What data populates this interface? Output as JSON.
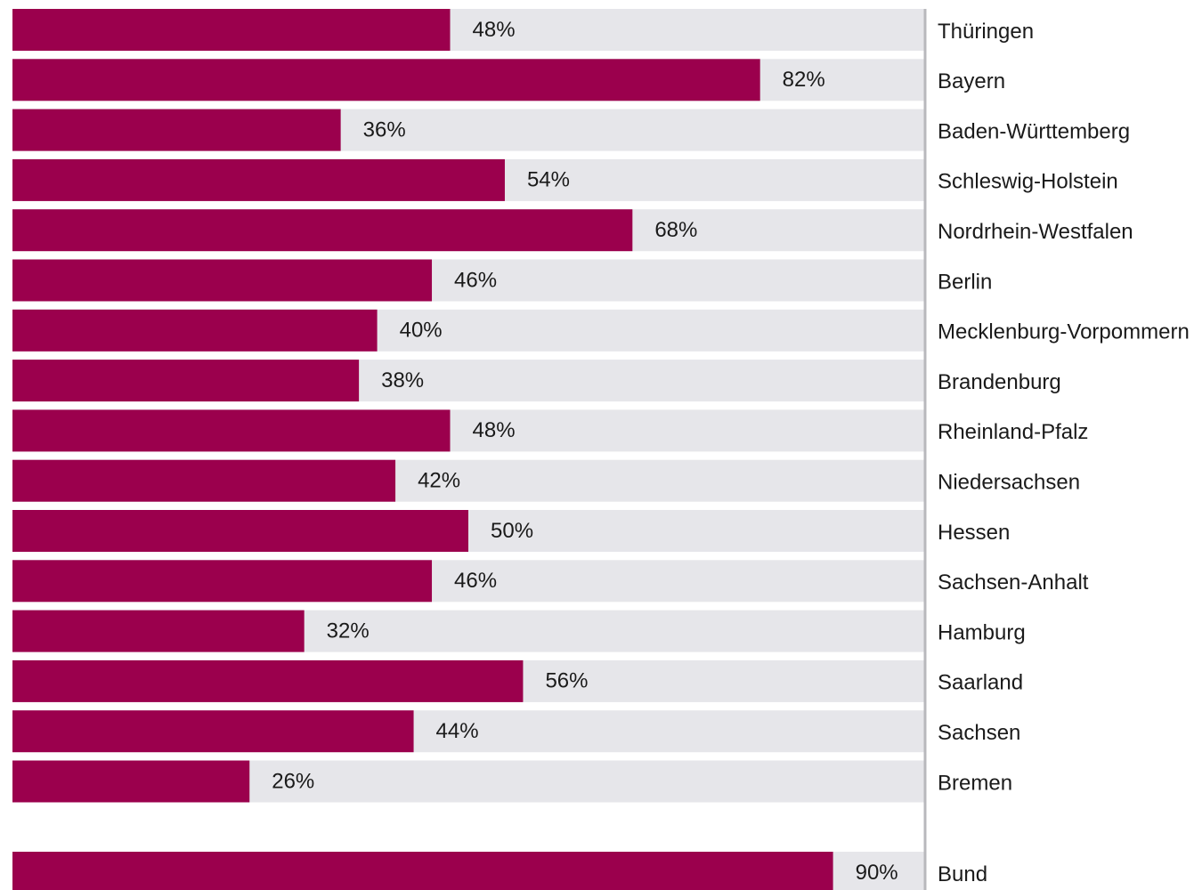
{
  "chart_data": {
    "type": "bar",
    "orientation": "horizontal",
    "value_suffix": "%",
    "xlim": [
      0,
      100
    ],
    "grid": false,
    "legend": "none",
    "colors": {
      "bar": "#9b004d",
      "track": "#e6e6ea",
      "axis_line": "#b8b8bc",
      "label": "#1a1a1a",
      "label_inside": "#ffffff"
    },
    "categories": [
      "Thüringen",
      "Bayern",
      "Baden-Württemberg",
      "Schleswig-Holstein",
      "Nordrhein-Westfalen",
      "Berlin",
      "Mecklenburg-Vorpommern",
      "Brandenburg",
      "Rheinland-Pfalz",
      "Niedersachsen",
      "Hessen",
      "Sachsen-Anhalt",
      "Hamburg",
      "Saarland",
      "Sachsen",
      "Bremen"
    ],
    "values": [
      48,
      82,
      36,
      54,
      68,
      46,
      40,
      38,
      48,
      42,
      50,
      46,
      32,
      56,
      44,
      26
    ],
    "total": {
      "category": "Bund",
      "value": 90
    }
  }
}
